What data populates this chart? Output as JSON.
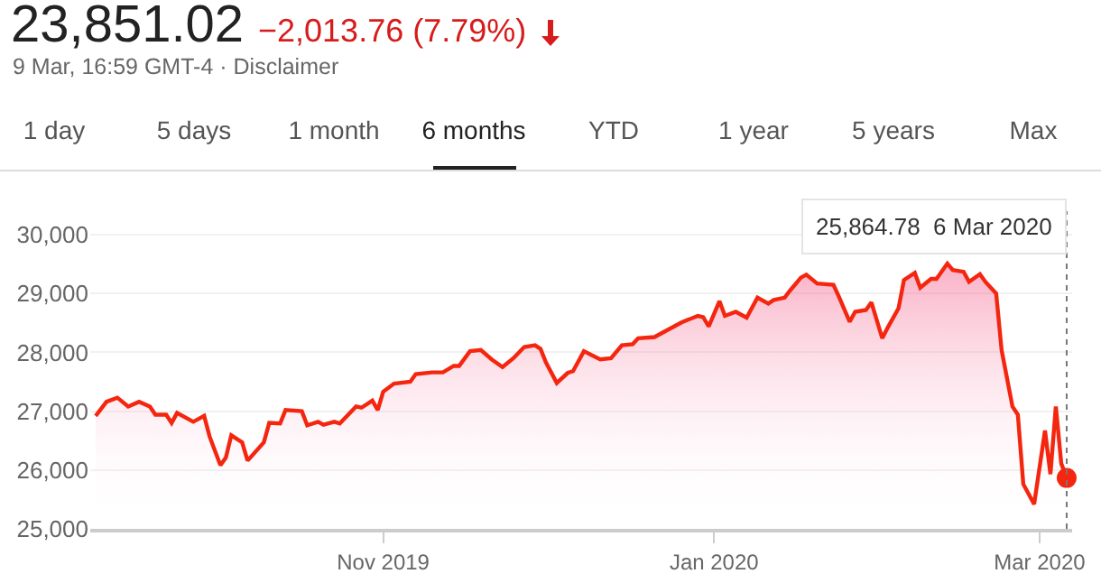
{
  "chart_data": {
    "type": "area",
    "title": "23,851.02",
    "subtitle": "9 Mar, 16:59 GMT-4 · Disclaimer",
    "annotations": [
      "−2,013.76 (7.79%)",
      "1 day",
      "5 days",
      "1 month",
      "6 months",
      "YTD",
      "1 year",
      "5 years",
      "Max"
    ],
    "series": [
      {
        "color": "#f4260f",
        "x": [
          "2019-09-09",
          "2019-09-11",
          "2019-09-13",
          "2019-09-15",
          "2019-09-17",
          "2019-09-19",
          "2019-09-20",
          "2019-09-22",
          "2019-09-23",
          "2019-09-24",
          "2019-09-27",
          "2019-09-29",
          "2019-09-30",
          "2019-10-02",
          "2019-10-03",
          "2019-10-04",
          "2019-10-06",
          "2019-10-07",
          "2019-10-10",
          "2019-10-11",
          "2019-10-13",
          "2019-10-14",
          "2019-10-17",
          "2019-10-18",
          "2019-10-20",
          "2019-10-21",
          "2019-10-23",
          "2019-10-24",
          "2019-10-27",
          "2019-10-28",
          "2019-10-30",
          "2019-10-31",
          "2019-11-01",
          "2019-11-03",
          "2019-11-06",
          "2019-11-07",
          "2019-11-10",
          "2019-11-12",
          "2019-11-14",
          "2019-11-15",
          "2019-11-17",
          "2019-11-19",
          "2019-11-21",
          "2019-11-23",
          "2019-11-25",
          "2019-11-27",
          "2019-11-29",
          "2019-11-30",
          "2019-12-01",
          "2019-12-03",
          "2019-12-05",
          "2019-12-06",
          "2019-12-08",
          "2019-12-11",
          "2019-12-13",
          "2019-12-15",
          "2019-12-17",
          "2019-12-18",
          "2019-12-21",
          "2019-12-23",
          "2019-12-26",
          "2019-12-29",
          "2019-12-30",
          "2019-12-31",
          "2020-01-02",
          "2020-01-03",
          "2020-01-05",
          "2020-01-07",
          "2020-01-09",
          "2020-01-11",
          "2020-01-12",
          "2020-01-14",
          "2020-01-15",
          "2020-01-17",
          "2020-01-18",
          "2020-01-20",
          "2020-01-23",
          "2020-01-24",
          "2020-01-26",
          "2020-01-27",
          "2020-01-29",
          "2020-01-30",
          "2020-02-01",
          "2020-02-02",
          "2020-02-04",
          "2020-02-05",
          "2020-02-07",
          "2020-02-08",
          "2020-02-10",
          "2020-02-11",
          "2020-02-13",
          "2020-02-14",
          "2020-02-16",
          "2020-02-17",
          "2020-02-19",
          "2020-02-20",
          "2020-02-22",
          "2020-02-23",
          "2020-02-25",
          "2020-02-26",
          "2020-02-27",
          "2020-02-29",
          "2020-03-02",
          "2020-03-03",
          "2020-03-04",
          "2020-03-05",
          "2020-03-06"
        ],
        "values": [
          26920,
          27160,
          27230,
          27080,
          27160,
          27080,
          26940,
          26940,
          26800,
          26970,
          26820,
          26920,
          26570,
          26080,
          26210,
          26590,
          26470,
          26160,
          26470,
          26800,
          26790,
          27020,
          27000,
          26760,
          26820,
          26770,
          26820,
          26790,
          27080,
          27060,
          27180,
          27020,
          27330,
          27470,
          27500,
          27630,
          27660,
          27660,
          27770,
          27770,
          28020,
          28040,
          27880,
          27750,
          27900,
          28090,
          28120,
          28060,
          27830,
          27480,
          27650,
          27680,
          28020,
          27880,
          27900,
          28120,
          28140,
          28240,
          28260,
          28360,
          28510,
          28620,
          28600,
          28440,
          28870,
          28620,
          28690,
          28590,
          28930,
          28830,
          28890,
          28930,
          29050,
          29270,
          29320,
          29170,
          29150,
          28950,
          28520,
          28690,
          28720,
          28850,
          28240,
          28420,
          28750,
          29230,
          29350,
          29100,
          29250,
          29250,
          29510,
          29400,
          29370,
          29200,
          29330,
          29200,
          29000,
          28040,
          27080,
          26940,
          25760,
          25420,
          26670,
          25930,
          27080,
          26110,
          25864.78
        ]
      },
      {
        "type": "scatter",
        "marker": "circle",
        "color": "#f4260f",
        "x": [
          "2020-03-06"
        ],
        "values": [
          25864.78
        ]
      }
    ],
    "xlim": [
      "2019-09-08",
      "2020-03-07"
    ],
    "xticks": [
      {
        "value": "2019-11-01",
        "label": "Nov 2019"
      },
      {
        "value": "2020-01-01",
        "label": "Jan 2020"
      },
      {
        "value": "2020-03-01",
        "label": "Mar 2020"
      }
    ],
    "ylim": [
      25000,
      30400
    ],
    "yticks": [
      {
        "value": 25000,
        "label": "25,000"
      },
      {
        "value": 26000,
        "label": "26,000"
      },
      {
        "value": 27000,
        "label": "27,000"
      },
      {
        "value": 28000,
        "label": "28,000"
      },
      {
        "value": 29000,
        "label": "29,000"
      },
      {
        "value": 30000,
        "label": "30,000"
      }
    ],
    "ref_lines": [
      {
        "axis": "x",
        "value": "2020-03-06",
        "label": "25,864.78  6 Mar 2020",
        "color": "#777777",
        "line_style": "dotted"
      }
    ],
    "grid": "y",
    "marker": "none",
    "line_style": "solid"
  }
}
